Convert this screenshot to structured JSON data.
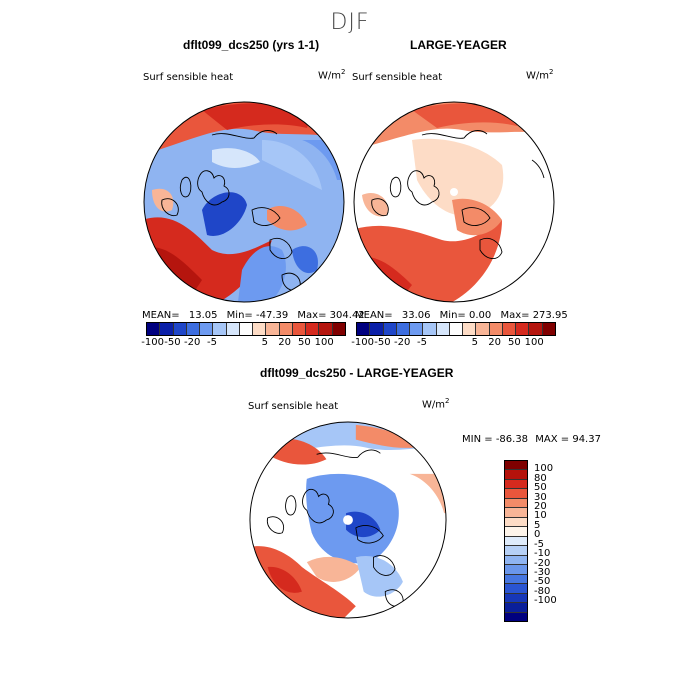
{
  "season_title": "DJF",
  "panel_left": {
    "title": "dflt099_dcs250 (yrs 1-1)",
    "field_label": "Surf sensible heat",
    "units": "W/m",
    "units_exp": "2",
    "stats": {
      "mean_label": "MEAN=",
      "mean": "13.05",
      "min_label": "Min=",
      "min": "-47.39",
      "max_label": "Max=",
      "max": "304.42"
    }
  },
  "panel_right": {
    "title": "LARGE-YEAGER",
    "field_label": "Surf sensible heat",
    "units": "W/m",
    "units_exp": "2",
    "stats": {
      "mean_label": "MEAN=",
      "mean": "33.06",
      "min_label": "Min=",
      "min": "0.00",
      "max_label": "Max=",
      "max": "273.95"
    }
  },
  "panel_diff": {
    "title": "dflt099_dcs250 - LARGE-YEAGER",
    "field_label": "Surf sensible heat",
    "units": "W/m",
    "units_exp": "2",
    "stats": {
      "min_label": "MIN =",
      "min": "-86.38",
      "max_label": "MAX =",
      "max": "94.37"
    }
  },
  "colorbar_horizontal": {
    "colors": [
      "#00007f",
      "#0a1fa8",
      "#1f46c8",
      "#3d6ee0",
      "#6d9af0",
      "#a6c6f7",
      "#d6e6fb",
      "#fdfdfd",
      "#fddcc6",
      "#f8b597",
      "#f38b68",
      "#e9563c",
      "#d52a1e",
      "#b5150e",
      "#800000"
    ],
    "labels": [
      "-100",
      "-50",
      "-20",
      "-5",
      "5",
      "20",
      "50",
      "100"
    ]
  },
  "colorbar_vertical": {
    "colors_top_to_bottom": [
      "#7f0000",
      "#b5120b",
      "#d52a1e",
      "#e9563c",
      "#f38b68",
      "#f8b597",
      "#fddcc6",
      "#fdf4ea",
      "#deebfb",
      "#b6d0f6",
      "#8fb4f1",
      "#6a96ea",
      "#4676e0",
      "#2a55d2",
      "#1737b8",
      "#0a1f9a",
      "#00007f"
    ],
    "labels": [
      "100",
      "80",
      "50",
      "30",
      "20",
      "10",
      "5",
      "0",
      "-5",
      "-10",
      "-20",
      "-30",
      "-50",
      "-80",
      "-100"
    ]
  }
}
